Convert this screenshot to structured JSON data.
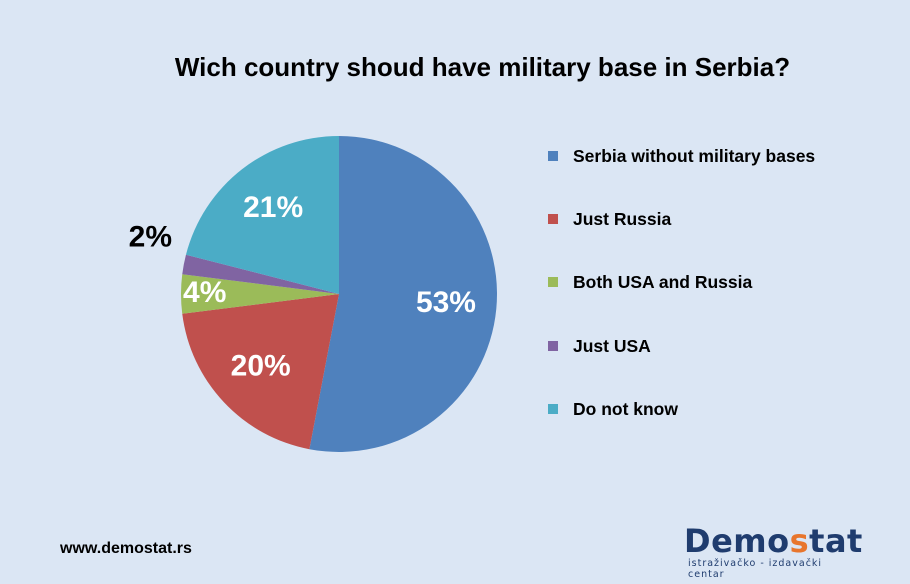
{
  "chart_data": {
    "type": "pie",
    "title": "Wich country shoud have military base in Serbia?",
    "categories": [
      "Serbia without military bases",
      "Just Russia",
      "Both USA and Russia",
      "Just USA",
      "Do not know"
    ],
    "values": [
      53,
      20,
      4,
      2,
      21
    ],
    "labels": [
      "53%",
      "20%",
      "4%",
      "2%",
      "21%"
    ],
    "colors": [
      "#4f81bd",
      "#c0504d",
      "#9bbb59",
      "#8064a2",
      "#4bacc6"
    ],
    "legend_position": "right"
  },
  "footer": {
    "url": "www.demostat.rs"
  },
  "logo": {
    "word_a": "Demo",
    "word_b": "s",
    "word_c": "tat",
    "tagline": "istraživačko - izdavački centar",
    "colors": {
      "main": "#1f3c6e",
      "accent": "#e8762d"
    }
  }
}
